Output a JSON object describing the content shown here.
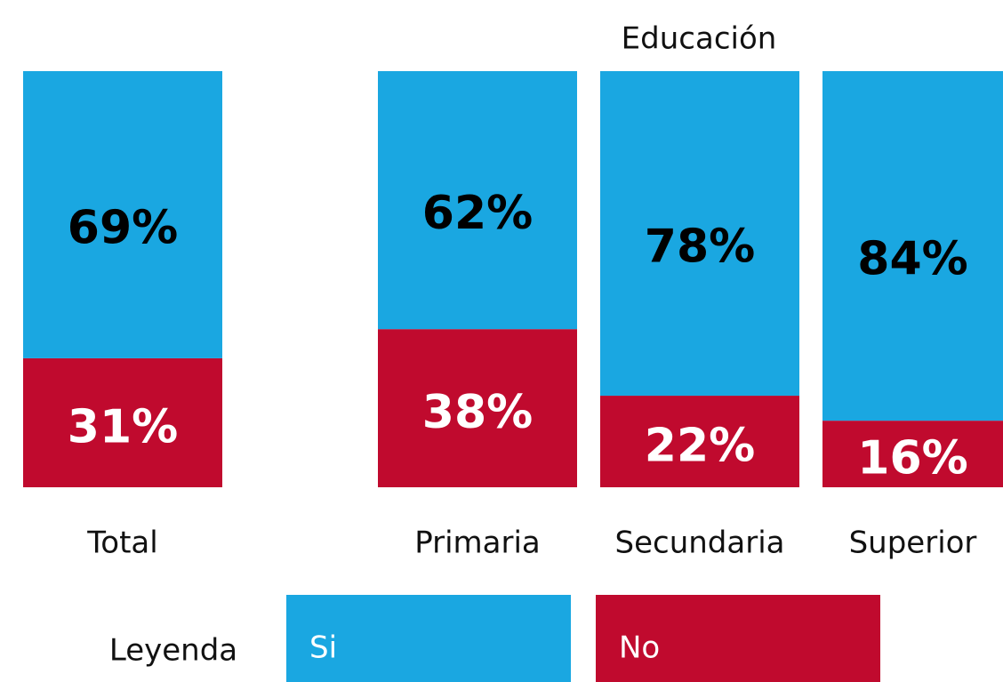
{
  "chart_data": {
    "type": "stacked_bar_100",
    "annotation": "Educación",
    "legend_title": "Leyenda",
    "categories": [
      "Total",
      "Primaria",
      "Secundaria",
      "Superior"
    ],
    "ylim": [
      0,
      100
    ],
    "series": [
      {
        "name": "No",
        "color": "#c00a2e",
        "label_color": "#ffffff",
        "values": [
          31,
          38,
          22,
          16
        ],
        "value_labels": [
          "31%",
          "38%",
          "22%",
          "16%"
        ]
      },
      {
        "name": "Si",
        "color": "#1aa7e1",
        "label_color": "#000000",
        "values": [
          69,
          62,
          78,
          84
        ],
        "value_labels": [
          "69%",
          "62%",
          "78%",
          "84%"
        ]
      }
    ]
  }
}
